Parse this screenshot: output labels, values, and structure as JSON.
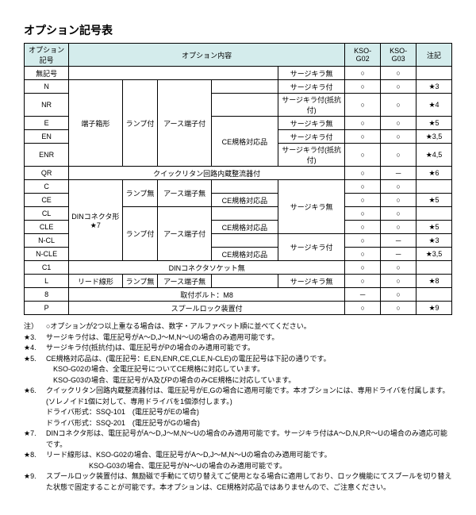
{
  "title": "オプション記号表",
  "headers": {
    "opt_code": "オプション記号",
    "opt_content": "オプション内容",
    "kso_g02": "KSO-G02",
    "kso_g03": "KSO-G03",
    "note_col": "注記"
  },
  "terminal_box": "端子箱形",
  "din_connector": "DINコネクタ形",
  "lead_wire": "リード線形",
  "with_lamp": "ランプ付",
  "without_lamp": "ランプ無",
  "with_earth": "アース端子付",
  "without_earth": "アース端子無",
  "ce_compliant": "CE規格対応品",
  "quick_return": "クイックリタン回路内蔵整流器付",
  "din_sock_no": "DINコネクタソケット無",
  "m8": "取付ボルト：M8",
  "spool": "スプールロック装置付",
  "sk_no": "サージキラ無",
  "sk_yes": "サージキラ付",
  "sk_resist": "サージキラ付(抵抗付)",
  "circle": "○",
  "dash": "－",
  "star7": "★7",
  "code_8": "8",
  "rows": {
    "blank": {
      "code": "無記号",
      "g02": "○",
      "g03": "○",
      "note": ""
    },
    "n": {
      "code": "N",
      "g02": "○",
      "g03": "○",
      "note": "★3"
    },
    "nr": {
      "code": "NR",
      "g02": "○",
      "g03": "○",
      "note": "★4"
    },
    "e": {
      "code": "E",
      "g02": "○",
      "g03": "○",
      "note": "★5"
    },
    "en": {
      "code": "EN",
      "g02": "○",
      "g03": "○",
      "note": "★3,5"
    },
    "enr": {
      "code": "ENR",
      "g02": "○",
      "g03": "○",
      "note": "★4,5"
    },
    "qr": {
      "code": "QR",
      "g02": "○",
      "g03": "－",
      "note": "★6"
    },
    "c": {
      "code": "C",
      "g02": "○",
      "g03": "○",
      "note": ""
    },
    "ce": {
      "code": "CE",
      "g02": "○",
      "g03": "○",
      "note": "★5"
    },
    "cl": {
      "code": "CL",
      "g02": "○",
      "g03": "○",
      "note": ""
    },
    "cle": {
      "code": "CLE",
      "g02": "○",
      "g03": "○",
      "note": "★5"
    },
    "ncl": {
      "code": "N-CL",
      "g02": "○",
      "g03": "－",
      "note": "★3"
    },
    "ncle": {
      "code": "N-CLE",
      "g02": "○",
      "g03": "－",
      "note": "★3,5"
    },
    "c1": {
      "code": "C1",
      "g02": "○",
      "g03": "○",
      "note": ""
    },
    "l": {
      "code": "L",
      "g02": "○",
      "g03": "○",
      "note": "★8"
    },
    "8": {
      "g02": "－",
      "g03": "○",
      "note": ""
    },
    "p": {
      "code": "P",
      "g02": "○",
      "g03": "○",
      "note": "★9"
    }
  },
  "notes": [
    {
      "mark": "注）",
      "text": "○オプションが2つ以上重なる場合は、数字・アルファベット順に並べてください。"
    },
    {
      "mark": "★3.",
      "text": "サージキラ付は、電圧記号がA～D,J～M,N～Uの場合のみ適用可能です。"
    },
    {
      "mark": "★4.",
      "text": "サージキラ付(抵抗付)は、電圧記号がPの場合のみ適用可能です。"
    },
    {
      "mark": "★5.",
      "text": "CE規格対応品は、(電圧記号：E,EN,ENR,CE,CLE,N-CLE)の電圧記号は下記の通りです。\n　KSO-G02の場合、全電圧記号についてCE規格に対応しています。\n　KSO-G03の場合、電圧記号がA及びPの場合のみCE規格に対応しています。"
    },
    {
      "mark": "★6.",
      "text": "クイックリタン回路内蔵整流器付は、電圧記号がE,Gの場合に適用可能です。本オプションには、専用ドライバを付属します。\n(ソレノイド1個に対して、専用ドライバを1個添付します。)\nドライバ形式：SSQ-101　(電圧記号がEの場合)\nドライバ形式：SSQ-201　(電圧記号がGの場合)"
    },
    {
      "mark": "★7.",
      "text": "DINコネクタ形は、電圧記号がA～D,J～M,N～Uの場合のみ適用可能です。サージキラ付はA～D,N,P,R～Uの場合のみ適応可能です。"
    },
    {
      "mark": "★8.",
      "text": "リード線形は、KSO-G02の場合、電圧記号がA～D,J～M,N～Uの場合のみ適用可能です。\n　　　　　　KSO-G03の場合、電圧記号がN～Uの場合のみ適用可能です。"
    },
    {
      "mark": "★9.",
      "text": "スプールロック装置付は、無励磁で手動にて切り替えてご使用となる場合に適用しており、ロック機能にてスプールを切り替えた状態で固定することが可能です。本オプションは、CE規格対応品ではありませんので、ご注意ください。"
    }
  ]
}
